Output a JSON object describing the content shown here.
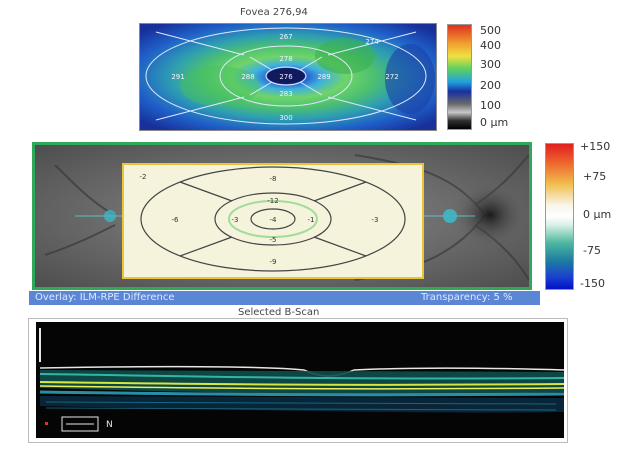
{
  "thickness_map": {
    "title": "Fovea 276,94",
    "center_value": "276",
    "sector_values": [
      "267",
      "278",
      "288",
      "289",
      "283",
      "291",
      "272",
      "300",
      "274"
    ],
    "colorbar": {
      "labels": [
        "500",
        "400",
        "300",
        "200",
        "100",
        "0 µm"
      ]
    }
  },
  "fundus_overlay": {
    "grid_values": [
      "-4",
      "-8",
      "-12",
      "-3",
      "-1",
      "-5",
      "-6",
      "-3",
      "-9",
      "-2"
    ],
    "colorbar": {
      "labels": [
        "+150",
        "+75",
        "0 µm",
        "-75",
        "-150"
      ]
    },
    "overlay_label": "Overlay: ILM-RPE Difference",
    "transparency_label": "Transparency: 5 %"
  },
  "bscan": {
    "title": "Selected B-Scan",
    "scale_label": "N"
  },
  "colors": {
    "panel_border": "#2fa85a",
    "overlay_bar": "#5b86d6"
  }
}
